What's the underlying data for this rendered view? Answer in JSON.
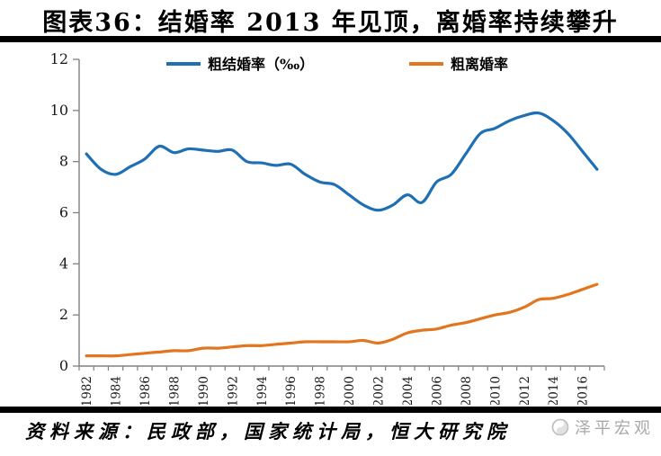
{
  "header": {
    "title": "图表36：结婚率 2013 年见顶，离婚率持续攀升"
  },
  "footer": {
    "source": "资料来源：民政部，国家统计局，恒大研究院",
    "watermark": "泽平宏观"
  },
  "chart_data": {
    "type": "line",
    "title": "",
    "xlabel": "",
    "ylabel": "",
    "x": [
      1982,
      1983,
      1984,
      1985,
      1986,
      1987,
      1988,
      1989,
      1990,
      1991,
      1992,
      1993,
      1994,
      1995,
      1996,
      1997,
      1998,
      1999,
      2000,
      2001,
      2002,
      2003,
      2004,
      2005,
      2006,
      2007,
      2008,
      2009,
      2010,
      2011,
      2012,
      2013,
      2014,
      2015,
      2016,
      2017
    ],
    "xtick_labels": [
      "1982",
      "1984",
      "1986",
      "1988",
      "1990",
      "1992",
      "1994",
      "1996",
      "1998",
      "2000",
      "2002",
      "2004",
      "2006",
      "2008",
      "2010",
      "2012",
      "2014",
      "2016"
    ],
    "ylim": [
      0,
      12
    ],
    "ytick_step": 2,
    "grid": false,
    "legend_position": "top-center",
    "axis_color": "#808080",
    "series": [
      {
        "name": "粗结婚率（‰）",
        "color": "#1F6FB5",
        "values": [
          8.3,
          7.7,
          7.5,
          7.8,
          8.1,
          8.6,
          8.35,
          8.5,
          8.45,
          8.4,
          8.45,
          8.0,
          7.95,
          7.85,
          7.9,
          7.5,
          7.2,
          7.1,
          6.7,
          6.3,
          6.1,
          6.3,
          6.7,
          6.4,
          7.2,
          7.5,
          8.3,
          9.1,
          9.3,
          9.6,
          9.8,
          9.9,
          9.6,
          9.1,
          8.4,
          7.7
        ]
      },
      {
        "name": "粗离婚率",
        "color": "#E2751D",
        "values": [
          0.4,
          0.4,
          0.4,
          0.45,
          0.5,
          0.55,
          0.6,
          0.6,
          0.7,
          0.7,
          0.75,
          0.8,
          0.8,
          0.85,
          0.9,
          0.95,
          0.95,
          0.95,
          0.95,
          1.0,
          0.9,
          1.05,
          1.3,
          1.4,
          1.45,
          1.6,
          1.7,
          1.85,
          2.0,
          2.1,
          2.3,
          2.6,
          2.65,
          2.8,
          3.0,
          3.2
        ]
      }
    ]
  }
}
